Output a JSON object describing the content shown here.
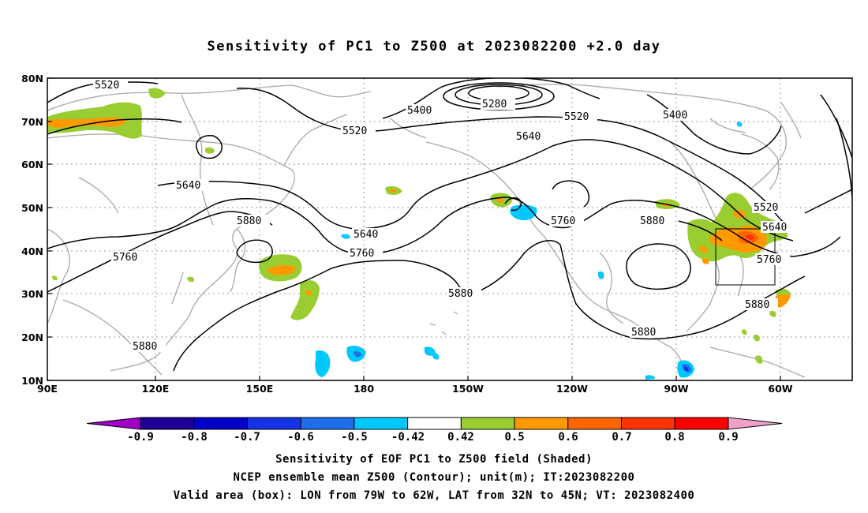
{
  "title": "Sensitivity of PC1 to Z500 at 2023082200 +2.0 day",
  "axes": {
    "lat_labels": [
      "80N",
      "70N",
      "60N",
      "50N",
      "40N",
      "30N",
      "20N",
      "10N"
    ],
    "lon_labels": [
      "90E",
      "120E",
      "150E",
      "180",
      "150W",
      "120W",
      "90W",
      "60W"
    ]
  },
  "contour_labels": [
    {
      "text": "5520"
    },
    {
      "text": "5280"
    },
    {
      "text": "5400"
    },
    {
      "text": "5520"
    },
    {
      "text": "5520"
    },
    {
      "text": "5400"
    },
    {
      "text": "5640"
    },
    {
      "text": "5640"
    },
    {
      "text": "5880"
    },
    {
      "text": "5640"
    },
    {
      "text": "5760"
    },
    {
      "text": "5760"
    },
    {
      "text": "5760"
    },
    {
      "text": "5880"
    },
    {
      "text": "5520"
    },
    {
      "text": "5640"
    },
    {
      "text": "5760"
    },
    {
      "text": "5880"
    },
    {
      "text": "5880"
    },
    {
      "text": "5880"
    },
    {
      "text": "5880"
    }
  ],
  "colorbar": {
    "ticks": [
      "-0.9",
      "-0.8",
      "-0.7",
      "-0.6",
      "-0.5",
      "-0.42",
      "0.42",
      "0.5",
      "0.6",
      "0.7",
      "0.8",
      "0.9"
    ],
    "colors": [
      "#a000c8",
      "#1e0096",
      "#0000c8",
      "#1432e6",
      "#1e6eeb",
      "#00c8ff",
      "#ffffff",
      "#9acd32",
      "#ff9900",
      "#ff6600",
      "#ff3300",
      "#ff0000",
      "#f0a0c8"
    ]
  },
  "footer": {
    "line1": "Sensitivity of EOF PC1 to Z500 field (Shaded)",
    "line2": "NCEP ensemble mean Z500 (Contour); unit(m); IT:2023082200",
    "line3": "Valid area (box): LON from 79W to 62W, LAT from 32N to 45N; VT: 2023082400"
  },
  "valid_box": {
    "lon_from": "79W",
    "lon_to": "62W",
    "lat_from": "32N",
    "lat_to": "45N"
  }
}
